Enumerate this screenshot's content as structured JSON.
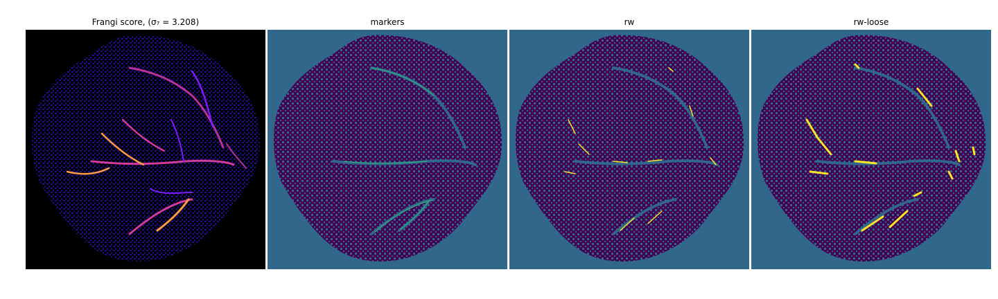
{
  "figure": {
    "panels": [
      {
        "id": "frangi",
        "title": "Frangi score, (σ₇ = 3.208)",
        "background_color": "#000000",
        "tissue_color": "#1d0a8a",
        "vessel_colors": [
          "#7e1dfb",
          "#d23a9c",
          "#fd9a48"
        ]
      },
      {
        "id": "markers",
        "title": "markers",
        "background_color": "#31678b",
        "tissue_color": "#440154",
        "marker_color": "#35b779"
      },
      {
        "id": "rw",
        "title": "rw",
        "background_color": "#31678b",
        "tissue_color": "#440154",
        "vessel_color": "#fde725"
      },
      {
        "id": "rw-loose",
        "title": "rw-loose",
        "background_color": "#31678b",
        "tissue_color": "#440154",
        "vessel_color": "#fde725"
      }
    ]
  }
}
